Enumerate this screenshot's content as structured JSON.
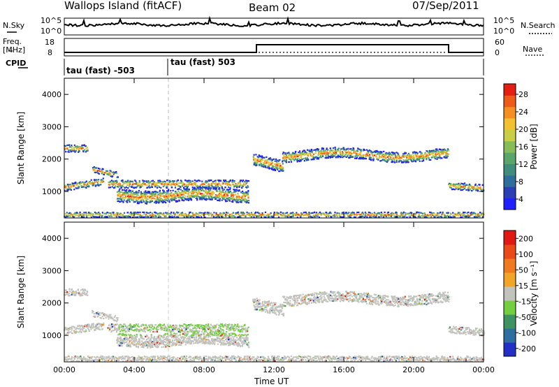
{
  "header": {
    "station": "Wallops Island (fitACF)",
    "beam": "Beam 02",
    "date": "07/Sep/2011"
  },
  "noise_panel": {
    "left_label": "N.Sky",
    "right_label": "N.Search",
    "left_ticks": [
      "10^5",
      "10^0"
    ],
    "right_ticks": [
      "10^5",
      "10^0"
    ]
  },
  "freq_panel": {
    "left_label_1": "Freq.",
    "left_label_2": "[MHz]",
    "right_label": "Nave",
    "left_ticks": [
      "18",
      "8"
    ],
    "right_ticks": [
      "60",
      "0"
    ],
    "step_start": "11:00",
    "step_end": "22:00"
  },
  "cpid_panel": {
    "label": "CPID",
    "segments": [
      "tau (fast) -503",
      "tau (fast) 503"
    ]
  },
  "x_axis": {
    "label": "Time UT",
    "ticks": [
      "00:00",
      "04:00",
      "08:00",
      "12:00",
      "16:00",
      "20:00",
      "00:00"
    ]
  },
  "chart_data": [
    {
      "type": "heatmap",
      "panel": "power",
      "ylabel": "Slant Range [km]",
      "ylim": [
        180,
        4500
      ],
      "yticks": [
        "1000",
        "2000",
        "3000",
        "4000"
      ],
      "colorbar": {
        "label": "Power [dB]",
        "ticks": [
          "28",
          "24",
          "20",
          "16",
          "12",
          "8",
          "4"
        ],
        "range": [
          0,
          30
        ],
        "colors": [
          "#1f1fff",
          "#2b3fb5",
          "#2f6d9c",
          "#3f8d7a",
          "#5aa56a",
          "#86bd59",
          "#c7cf45",
          "#f2c12f",
          "#f58f22",
          "#ef5a18",
          "#e41e12"
        ]
      }
    },
    {
      "type": "heatmap",
      "panel": "velocity",
      "ylabel": "Slant Range [km]",
      "ylim": [
        180,
        4500
      ],
      "yticks": [
        "1000",
        "2000",
        "3000",
        "4000"
      ],
      "colorbar": {
        "label": "Velocity [m s⁻¹]",
        "ticks": [
          "200",
          "100",
          "50",
          "15",
          "-15",
          "-50",
          "-100",
          "-200"
        ],
        "colors": [
          "#2230c8",
          "#2f6fa0",
          "#3d9460",
          "#73cf3f",
          "#c3c3be",
          "#f2a526",
          "#f07a20",
          "#e94a18",
          "#e01a12"
        ]
      }
    }
  ]
}
